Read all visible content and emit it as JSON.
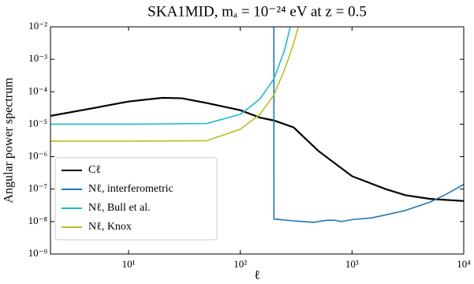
{
  "chart_data": {
    "type": "line",
    "title": "SKA1MID, mₐ = 10⁻²⁴ eV at z = 0.5",
    "xlabel": "ℓ",
    "ylabel": "Angular power spectrum",
    "xscale": "log",
    "yscale": "log",
    "xlim": [
      2,
      10000
    ],
    "ylim": [
      1e-09,
      0.01
    ],
    "xticks": [
      {
        "value": 10,
        "label": "10¹"
      },
      {
        "value": 100,
        "label": "10²"
      },
      {
        "value": 1000,
        "label": "10³"
      },
      {
        "value": 10000,
        "label": "10⁴"
      }
    ],
    "yticks": [
      {
        "value": 1e-09,
        "label": "10⁻⁹"
      },
      {
        "value": 1e-08,
        "label": "10⁻⁸"
      },
      {
        "value": 1e-07,
        "label": "10⁻⁷"
      },
      {
        "value": 1e-06,
        "label": "10⁻⁶"
      },
      {
        "value": 1e-05,
        "label": "10⁻⁵"
      },
      {
        "value": 0.0001,
        "label": "10⁻⁴"
      },
      {
        "value": 0.001,
        "label": "10⁻³"
      },
      {
        "value": 0.01,
        "label": "10⁻²"
      }
    ],
    "legend": "lower left",
    "series": [
      {
        "name": "Cℓ",
        "color": "#000000",
        "x": [
          2,
          5,
          10,
          20,
          30,
          50,
          100,
          150,
          200,
          300,
          500,
          1000,
          2000,
          3000,
          5000,
          10000
        ],
        "values": [
          1.8e-05,
          3.2e-05,
          5e-05,
          6.5e-05,
          6.3e-05,
          4.5e-05,
          2.7e-05,
          1.6e-05,
          1.3e-05,
          8e-06,
          1.5e-06,
          2.5e-07,
          1e-07,
          6.5e-08,
          5e-08,
          4.3e-08
        ]
      },
      {
        "name": "Nℓ, interferometric",
        "color": "#1f77b4",
        "x": [
          199.9,
          200,
          300,
          450,
          600,
          700,
          800,
          1000,
          1500,
          2000,
          3000,
          5000,
          7000,
          10000
        ],
        "values": [
          0.01,
          1.2e-08,
          1.05e-08,
          9.5e-09,
          1.1e-08,
          1.1e-08,
          1e-08,
          1.15e-08,
          1.3e-08,
          1.6e-08,
          2.2e-08,
          4e-08,
          7e-08,
          1.4e-07
        ]
      },
      {
        "name": "Nℓ, Bull et al.",
        "color": "#17becf",
        "x": [
          2,
          10,
          50,
          100,
          150,
          200,
          250,
          280
        ],
        "values": [
          1e-05,
          1e-05,
          1.05e-05,
          2e-05,
          6e-05,
          0.00025,
          0.002,
          0.01
        ]
      },
      {
        "name": "Nℓ, Knox",
        "color": "#bcbd22",
        "x": [
          2,
          10,
          50,
          100,
          150,
          200,
          250,
          300,
          330
        ],
        "values": [
          3e-06,
          3e-06,
          3.1e-06,
          7e-06,
          2e-05,
          8e-05,
          0.0005,
          0.003,
          0.01
        ]
      }
    ]
  }
}
